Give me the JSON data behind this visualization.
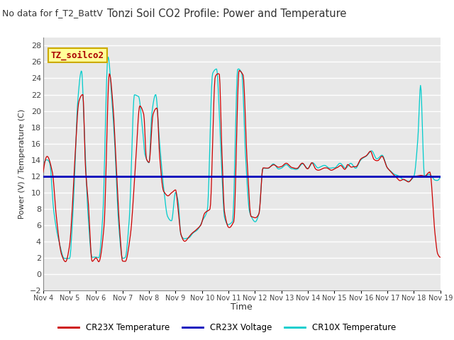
{
  "title": "Tonzi Soil CO2 Profile: Power and Temperature",
  "subtitle": "No data for f_T2_BattV",
  "ylabel": "Power (V) / Temperature (C)",
  "xlabel": "Time",
  "ylim": [
    -2,
    29
  ],
  "yticks": [
    -2,
    0,
    2,
    4,
    6,
    8,
    10,
    12,
    14,
    16,
    18,
    20,
    22,
    24,
    26,
    28
  ],
  "xtick_labels": [
    "Nov 4",
    "Nov 5",
    "Nov 6",
    "Nov 7",
    "Nov 8",
    "Nov 9",
    "Nov 10",
    "Nov 11",
    "Nov 12",
    "Nov 13",
    "Nov 14",
    "Nov 15",
    "Nov 16",
    "Nov 17",
    "Nov 18",
    "Nov 19"
  ],
  "voltage_color": "#0000bb",
  "cr23x_temp_color": "#cc0000",
  "cr10x_temp_color": "#00cccc",
  "legend_box_color": "#ffff99",
  "legend_box_text": "TZ_soilco2",
  "legend_box_text_color": "#aa0000",
  "background_color": "#ffffff",
  "plot_bg_color": "#e8e8e8",
  "grid_color": "#ffffff",
  "voltage_line_value": 12.0,
  "num_days": 15
}
